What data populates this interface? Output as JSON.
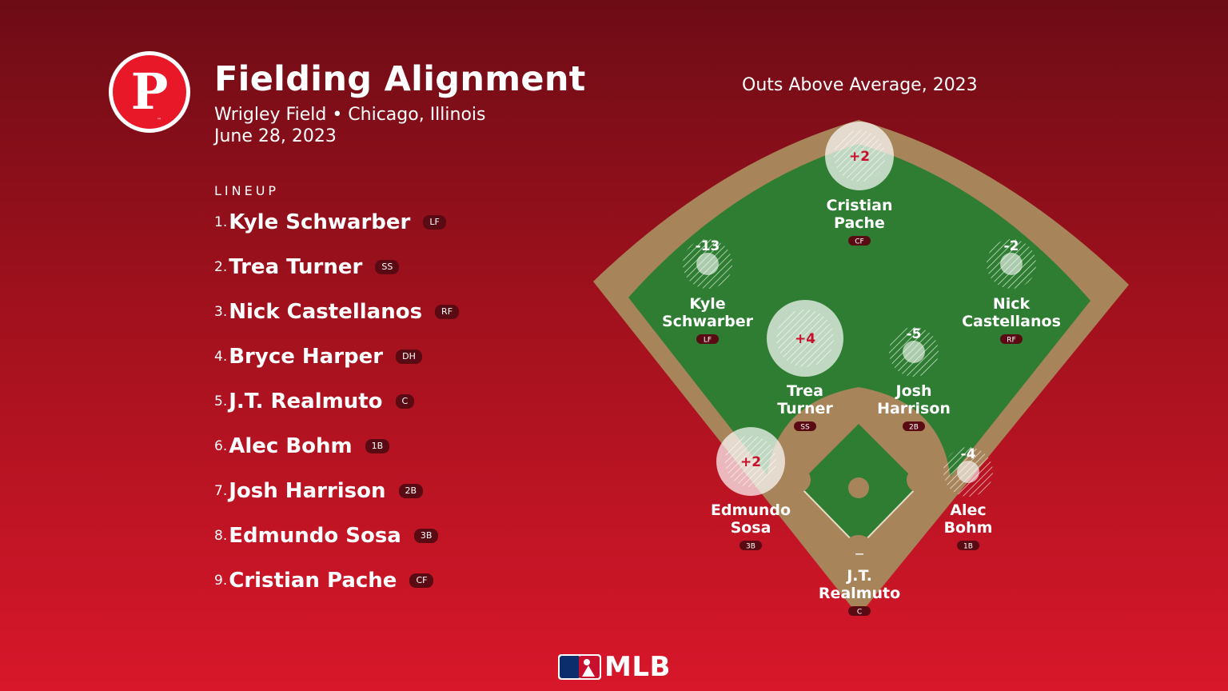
{
  "header": {
    "title": "Fielding Alignment",
    "venue": "Wrigley Field • Chicago, Illinois",
    "date": "June 28, 2023",
    "logo_letter": "P",
    "logo_tm": "™"
  },
  "lineup": {
    "heading": "LINEUP",
    "items": [
      {
        "num": "1.",
        "name": "Kyle Schwarber",
        "pos": "LF"
      },
      {
        "num": "2.",
        "name": "Trea Turner",
        "pos": "SS"
      },
      {
        "num": "3.",
        "name": "Nick Castellanos",
        "pos": "RF"
      },
      {
        "num": "4.",
        "name": "Bryce Harper",
        "pos": "DH"
      },
      {
        "num": "5.",
        "name": "J.T. Realmuto",
        "pos": "C"
      },
      {
        "num": "6.",
        "name": "Alec Bohm",
        "pos": "1B"
      },
      {
        "num": "7.",
        "name": "Josh Harrison",
        "pos": "2B"
      },
      {
        "num": "8.",
        "name": "Edmundo Sosa",
        "pos": "3B"
      },
      {
        "num": "9.",
        "name": "Cristian Pache",
        "pos": "CF"
      }
    ]
  },
  "field": {
    "title": "Outs Above Average, 2023",
    "fielders": [
      {
        "line1": "Cristian",
        "line2": "Pache",
        "pos": "CF",
        "oaa": "+2"
      },
      {
        "line1": "Kyle",
        "line2": "Schwarber",
        "pos": "LF",
        "oaa": "-13"
      },
      {
        "line1": "Nick",
        "line2": "Castellanos",
        "pos": "RF",
        "oaa": "-2"
      },
      {
        "line1": "Trea",
        "line2": "Turner",
        "pos": "SS",
        "oaa": "+4"
      },
      {
        "line1": "Josh",
        "line2": "Harrison",
        "pos": "2B",
        "oaa": "-5"
      },
      {
        "line1": "Edmundo",
        "line2": "Sosa",
        "pos": "3B",
        "oaa": "+2"
      },
      {
        "line1": "Alec",
        "line2": "Bohm",
        "pos": "1B",
        "oaa": "-4"
      },
      {
        "line1": "J.T.",
        "line2": "Realmuto",
        "pos": "C",
        "oaa": "—"
      }
    ]
  },
  "footer": {
    "brand": "MLB"
  },
  "colors": {
    "accent": "#c8102e",
    "grass": "#2e7d32",
    "dirt": "#a8845a",
    "badge": "#5a0a12"
  }
}
